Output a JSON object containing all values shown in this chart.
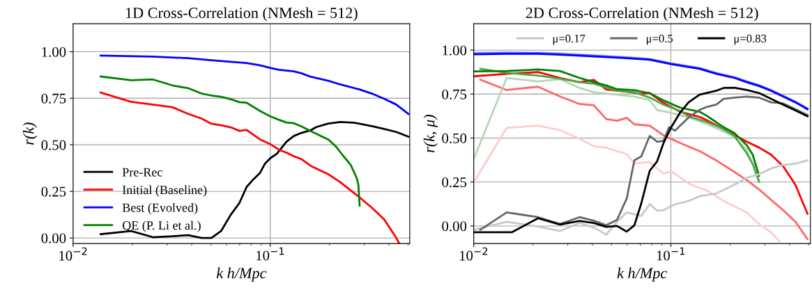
{
  "chart_data": [
    {
      "type": "line",
      "title": "1D Cross-Correlation (NMesh = 512)",
      "xlabel": "k h/Mpc",
      "ylabel": "r(k)",
      "log": "x",
      "grid": true,
      "legend": "bottom left",
      "xlim": [
        0.01,
        0.51
      ],
      "ylim": [
        -0.03,
        1.15
      ],
      "xticks": [
        {
          "value": 0.01,
          "label": "10$^{−2}$"
        },
        {
          "value": 0.02,
          "label": null
        },
        {
          "value": 0.03,
          "label": null
        },
        {
          "value": 0.04,
          "label": null
        },
        {
          "value": 0.05,
          "label": null
        },
        {
          "value": 0.06,
          "label": null
        },
        {
          "value": 0.07,
          "label": null
        },
        {
          "value": 0.08,
          "label": null
        },
        {
          "value": 0.09,
          "label": null
        },
        {
          "value": 0.1,
          "label": "10$^{−1}$"
        },
        {
          "value": 0.2,
          "label": null
        },
        {
          "value": 0.3,
          "label": null
        },
        {
          "value": 0.4,
          "label": null
        },
        {
          "value": 0.5,
          "label": null
        }
      ],
      "yticks": [
        {
          "value": 0,
          "label": "0.00"
        },
        {
          "value": 0.25,
          "label": "0.25"
        },
        {
          "value": 0.5,
          "label": "0.50"
        },
        {
          "value": 0.75,
          "label": "0.75"
        },
        {
          "value": 1,
          "label": "1.00"
        }
      ],
      "series": [
        {
          "name": "Pre-Rec",
          "color": "#000000",
          "x": [
            0.0138,
            0.0197,
            0.0254,
            0.0319,
            0.0384,
            0.0449,
            0.0503,
            0.0563,
            0.0631,
            0.0697,
            0.0759,
            0.0815,
            0.0887,
            0.0939,
            0.1,
            0.108,
            0.121,
            0.132,
            0.144,
            0.161,
            0.171,
            0.197,
            0.227,
            0.265,
            0.328,
            0.378,
            0.436,
            0.502
          ],
          "values": [
            0.02,
            0.037,
            0.004,
            0.009,
            0.015,
            0.0,
            0.0,
            0.037,
            0.125,
            0.187,
            0.274,
            0.311,
            0.349,
            0.398,
            0.428,
            0.452,
            0.517,
            0.548,
            0.564,
            0.579,
            0.595,
            0.614,
            0.623,
            0.619,
            0.6,
            0.585,
            0.569,
            0.544
          ]
        },
        {
          "name": "Initial (Baseline)",
          "color": "#ff0000",
          "x": [
            0.0138,
            0.0197,
            0.0254,
            0.0319,
            0.0384,
            0.0449,
            0.0503,
            0.0563,
            0.0631,
            0.0697,
            0.0759,
            0.0887,
            0.1,
            0.111,
            0.121,
            0.132,
            0.144,
            0.161,
            0.197,
            0.227,
            0.265,
            0.284,
            0.328,
            0.378,
            0.436,
            0.451
          ],
          "values": [
            0.781,
            0.731,
            0.716,
            0.702,
            0.666,
            0.641,
            0.613,
            0.605,
            0.594,
            0.575,
            0.58,
            0.529,
            0.504,
            0.473,
            0.458,
            0.438,
            0.423,
            0.386,
            0.342,
            0.299,
            0.243,
            0.218,
            0.162,
            0.1,
            0.0,
            -0.03
          ]
        },
        {
          "name": "Best (Evolved)",
          "color": "#0000ff",
          "x": [
            0.0138,
            0.0254,
            0.0384,
            0.0503,
            0.0631,
            0.0759,
            0.0887,
            0.1,
            0.111,
            0.132,
            0.144,
            0.161,
            0.197,
            0.227,
            0.284,
            0.328,
            0.378,
            0.436,
            0.502
          ],
          "values": [
            0.979,
            0.974,
            0.965,
            0.954,
            0.946,
            0.939,
            0.927,
            0.913,
            0.903,
            0.894,
            0.884,
            0.865,
            0.844,
            0.824,
            0.797,
            0.775,
            0.747,
            0.716,
            0.666
          ]
        },
        {
          "name": "QE (P. Li et al.)",
          "color": "#008000",
          "x": [
            0.0138,
            0.0197,
            0.0254,
            0.0319,
            0.0384,
            0.0449,
            0.0503,
            0.0563,
            0.0631,
            0.0697,
            0.0759,
            0.0887,
            0.1,
            0.111,
            0.121,
            0.132,
            0.144,
            0.161,
            0.18,
            0.197,
            0.215,
            0.234,
            0.256,
            0.274,
            0.28,
            0.284
          ],
          "values": [
            0.867,
            0.847,
            0.851,
            0.819,
            0.804,
            0.775,
            0.765,
            0.758,
            0.745,
            0.729,
            0.726,
            0.682,
            0.653,
            0.634,
            0.62,
            0.616,
            0.599,
            0.573,
            0.548,
            0.529,
            0.492,
            0.442,
            0.392,
            0.324,
            0.286,
            0.174
          ]
        }
      ]
    },
    {
      "type": "line",
      "title": "2D Cross-Correlation (NMesh = 512)",
      "xlabel": "k h/Mpc",
      "ylabel": "r(k, μ)",
      "log": "x",
      "grid": true,
      "legend": "top",
      "xlim": [
        0.01,
        0.51
      ],
      "ylim": [
        -0.1,
        1.15
      ],
      "xticks": [
        {
          "value": 0.01,
          "label": "10$^{−2}$"
        },
        {
          "value": 0.02,
          "label": null
        },
        {
          "value": 0.03,
          "label": null
        },
        {
          "value": 0.04,
          "label": null
        },
        {
          "value": 0.05,
          "label": null
        },
        {
          "value": 0.06,
          "label": null
        },
        {
          "value": 0.07,
          "label": null
        },
        {
          "value": 0.08,
          "label": null
        },
        {
          "value": 0.09,
          "label": null
        },
        {
          "value": 0.1,
          "label": "10$^{−1}$"
        },
        {
          "value": 0.2,
          "label": null
        },
        {
          "value": 0.3,
          "label": null
        },
        {
          "value": 0.4,
          "label": null
        },
        {
          "value": 0.5,
          "label": null
        }
      ],
      "yticks": [
        {
          "value": 0,
          "label": "0.00"
        },
        {
          "value": 0.25,
          "label": "0.25"
        },
        {
          "value": 0.5,
          "label": "0.50"
        },
        {
          "value": 0.75,
          "label": "0.75"
        },
        {
          "value": 1,
          "label": "1.00"
        }
      ],
      "series": [
        {
          "color": "#ccccff",
          "x": [
            0.01,
            0.0147,
            0.0212,
            0.0274,
            0.0407,
            0.0597,
            0.0781,
            0.1,
            0.123,
            0.1397,
            0.17,
            0.21,
            0.2425,
            0.28,
            0.322,
            0.371,
            0.428,
            0.493
          ],
          "values": [
            0.986,
            0.989,
            0.987,
            0.982,
            0.972,
            0.961,
            0.951,
            0.927,
            0.91,
            0.9,
            0.871,
            0.848,
            0.824,
            0.802,
            0.775,
            0.742,
            0.709,
            0.67
          ]
        },
        {
          "color": "#6666ff",
          "x": [
            0.01,
            0.0147,
            0.0212,
            0.0274,
            0.0407,
            0.0597,
            0.0781,
            0.1,
            0.123,
            0.1397,
            0.17,
            0.21,
            0.2425,
            0.28,
            0.322,
            0.371,
            0.428,
            0.493
          ],
          "values": [
            0.981,
            0.984,
            0.983,
            0.978,
            0.968,
            0.957,
            0.948,
            0.924,
            0.907,
            0.897,
            0.868,
            0.845,
            0.821,
            0.799,
            0.772,
            0.739,
            0.706,
            0.667
          ]
        },
        {
          "color": "#0000ff",
          "x": [
            0.01,
            0.0147,
            0.0212,
            0.0274,
            0.0407,
            0.0597,
            0.0781,
            0.1,
            0.123,
            0.1397,
            0.17,
            0.21,
            0.2425,
            0.28,
            0.322,
            0.371,
            0.428,
            0.493
          ],
          "values": [
            0.976,
            0.979,
            0.979,
            0.974,
            0.964,
            0.954,
            0.945,
            0.921,
            0.904,
            0.894,
            0.865,
            0.842,
            0.818,
            0.796,
            0.769,
            0.736,
            0.703,
            0.664
          ]
        },
        {
          "color": "#ffcccc",
          "x": [
            0.01,
            0.0147,
            0.0212,
            0.0274,
            0.0344,
            0.0407,
            0.047,
            0.0597,
            0.0653,
            0.0781,
            0.0918,
            0.1,
            0.1113,
            0.123,
            0.152,
            0.185,
            0.2425,
            0.28,
            0.322,
            0.356
          ],
          "values": [
            0.248,
            0.558,
            0.571,
            0.545,
            0.496,
            0.453,
            0.445,
            0.409,
            0.356,
            0.363,
            0.297,
            0.311,
            0.277,
            0.241,
            0.202,
            0.142,
            0.077,
            0.011,
            -0.036,
            -0.088
          ]
        },
        {
          "color": "#ff6666",
          "x": [
            0.0108,
            0.0147,
            0.0212,
            0.0274,
            0.0344,
            0.0407,
            0.047,
            0.0533,
            0.0597,
            0.0653,
            0.0781,
            0.0918,
            0.1113,
            0.1397,
            0.17,
            0.21,
            0.2425,
            0.28,
            0.322,
            0.371,
            0.428,
            0.493
          ],
          "values": [
            0.832,
            0.773,
            0.792,
            0.736,
            0.694,
            0.686,
            0.608,
            0.598,
            0.615,
            0.578,
            0.571,
            0.515,
            0.472,
            0.426,
            0.373,
            0.307,
            0.261,
            0.208,
            0.149,
            0.09,
            0.024,
            -0.075
          ]
        },
        {
          "color": "#ff0000",
          "x": [
            0.01,
            0.0147,
            0.0212,
            0.0274,
            0.0344,
            0.0407,
            0.047,
            0.0597,
            0.0708,
            0.0781,
            0.0918,
            0.1113,
            0.1397,
            0.152,
            0.185,
            0.21,
            0.2425,
            0.28,
            0.322,
            0.371,
            0.428,
            0.493
          ],
          "values": [
            0.851,
            0.865,
            0.875,
            0.842,
            0.818,
            0.831,
            0.776,
            0.763,
            0.752,
            0.756,
            0.7,
            0.65,
            0.62,
            0.602,
            0.551,
            0.518,
            0.479,
            0.446,
            0.406,
            0.34,
            0.235,
            0.07
          ]
        },
        {
          "color": "#b2d8b2",
          "x": [
            0.01,
            0.0147,
            0.0212,
            0.0274,
            0.0344,
            0.0407,
            0.0533,
            0.0653,
            0.0781,
            0.0851,
            0.1,
            0.123,
            0.152,
            0.185,
            0.21,
            0.2425,
            0.28
          ],
          "values": [
            0.38,
            0.842,
            0.822,
            0.835,
            0.785,
            0.76,
            0.747,
            0.736,
            0.716,
            0.66,
            0.644,
            0.617,
            0.58,
            0.538,
            0.505,
            0.433,
            0.261
          ]
        },
        {
          "color": "#4ca64c",
          "x": [
            0.0108,
            0.0147,
            0.0212,
            0.0274,
            0.0344,
            0.0407,
            0.0533,
            0.0653,
            0.0781,
            0.0918,
            0.1113,
            0.123,
            0.152,
            0.185,
            0.21,
            0.2425,
            0.26,
            0.28
          ],
          "values": [
            0.894,
            0.871,
            0.855,
            0.838,
            0.818,
            0.809,
            0.769,
            0.76,
            0.73,
            0.69,
            0.654,
            0.624,
            0.591,
            0.551,
            0.512,
            0.413,
            0.354,
            0.251
          ]
        },
        {
          "color": "#008000",
          "x": [
            0.01,
            0.0147,
            0.0212,
            0.0274,
            0.0344,
            0.0407,
            0.047,
            0.0533,
            0.0653,
            0.0781,
            0.0918,
            0.1113,
            0.1397,
            0.152,
            0.185,
            0.21,
            0.2425,
            0.26,
            0.28
          ],
          "values": [
            0.879,
            0.881,
            0.89,
            0.881,
            0.842,
            0.818,
            0.799,
            0.778,
            0.772,
            0.755,
            0.714,
            0.673,
            0.65,
            0.627,
            0.562,
            0.529,
            0.459,
            0.406,
            0.285
          ]
        },
        {
          "name": "μ=0.17",
          "color": "#c8c8c8",
          "x": [
            0.01,
            0.0147,
            0.0212,
            0.0274,
            0.0344,
            0.0407,
            0.047,
            0.0533,
            0.0597,
            0.0708,
            0.0781,
            0.0851,
            0.0918,
            0.105,
            0.123,
            0.1397,
            0.17,
            0.21,
            0.2425,
            0.28,
            0.322,
            0.371,
            0.428,
            0.493
          ],
          "values": [
            -0.022,
            0.024,
            -0.003,
            -0.029,
            0.017,
            -0.009,
            -0.049,
            0.024,
            0.077,
            0.057,
            0.125,
            0.087,
            0.09,
            0.123,
            0.142,
            0.169,
            0.185,
            0.235,
            0.274,
            0.294,
            0.327,
            0.347,
            0.354,
            0.373
          ]
        },
        {
          "name": "μ=0.5",
          "color": "#666666",
          "x": [
            0.0108,
            0.0147,
            0.0212,
            0.0274,
            0.0344,
            0.0407,
            0.047,
            0.0533,
            0.0597,
            0.0653,
            0.0708,
            0.0781,
            0.0851,
            0.0918,
            0.098,
            0.105,
            0.123,
            0.1397,
            0.152,
            0.17,
            0.185,
            0.21,
            0.2425,
            0.28,
            0.322,
            0.371,
            0.428,
            0.493
          ],
          "values": [
            -0.022,
            0.077,
            0.05,
            0.011,
            0.05,
            0.03,
            0.004,
            0.034,
            0.156,
            0.373,
            0.396,
            0.512,
            0.479,
            0.485,
            0.562,
            0.542,
            0.617,
            0.66,
            0.677,
            0.69,
            0.723,
            0.73,
            0.736,
            0.73,
            0.703,
            0.697,
            0.664,
            0.631
          ]
        },
        {
          "name": "μ=0.83",
          "color": "#000000",
          "x": [
            0.01,
            0.0156,
            0.0212,
            0.0274,
            0.0344,
            0.0407,
            0.047,
            0.0533,
            0.0597,
            0.0653,
            0.0708,
            0.0781,
            0.0851,
            0.0918,
            0.1,
            0.1113,
            0.123,
            0.1397,
            0.17,
            0.185,
            0.21,
            0.2425,
            0.28,
            0.322,
            0.371,
            0.428,
            0.493
          ],
          "values": [
            -0.036,
            -0.036,
            0.044,
            0.008,
            0.029,
            0.017,
            -0.005,
            0.0,
            -0.032,
            0.004,
            0.129,
            0.314,
            0.367,
            0.472,
            0.558,
            0.644,
            0.703,
            0.747,
            0.769,
            0.785,
            0.786,
            0.773,
            0.756,
            0.723,
            0.69,
            0.657,
            0.624
          ]
        }
      ]
    }
  ]
}
